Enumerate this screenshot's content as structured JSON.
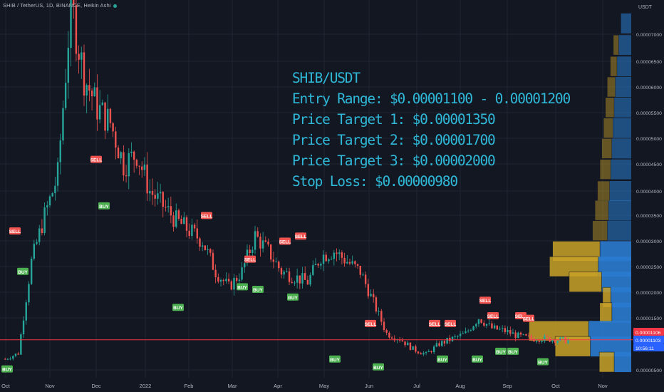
{
  "header": {
    "title": "SHIB / TetherUS, 1D, BINANCE, Heikin Ashi"
  },
  "annotation": {
    "lines": [
      "SHIB/USDT",
      "Entry Range: $0.00001100 - 0.00001200",
      "Price Target 1: $0.00001350",
      "Price Target 2: $0.00001700",
      "Price Target 3: $0.00002000",
      "Stop Loss: $0.00000980"
    ]
  },
  "colors": {
    "background": "#131722",
    "up": "#26a69a",
    "down": "#ef5350",
    "annotation": "#2fb8d8",
    "horizontal_line": "#f23645",
    "volume_profile_up": "#2a7bd0",
    "volume_profile_down": "#c9a227",
    "buy_label": "#4caf50",
    "sell_label": "#f05350"
  },
  "chart_data": {
    "type": "candlestick",
    "series_style": "Heikin Ashi",
    "currency_label": "USDT",
    "x_ticks": [
      "Oct",
      "Nov",
      "Dec",
      "2022",
      "Feb",
      "Mar",
      "Apr",
      "May",
      "Jun",
      "Jul",
      "Aug",
      "Sep",
      "Oct",
      "Nov"
    ],
    "y_ticks": [
      "0.00007000",
      "0.00006500",
      "0.00006000",
      "0.00005500",
      "0.00005000",
      "0.00004500",
      "0.00004000",
      "0.00003500",
      "0.00003000",
      "0.00002500",
      "0.00002000",
      "0.00001500",
      "0.00000500"
    ],
    "ylim": [
      3.9e-06,
      7.9e-06
    ],
    "price_path": [
      [
        "Oct",
        7.1e-06
      ],
      [
        "Oct",
        8.2e-06
      ],
      [
        "Oct",
        2.6e-05
      ],
      [
        "Oct",
        3.5e-05
      ],
      [
        "Oct",
        4.3e-05
      ],
      [
        "Nov",
        7.6e-05
      ],
      [
        "Nov",
        6.2e-05
      ],
      [
        "Nov",
        5.6e-05
      ],
      [
        "Nov",
        5.3e-05
      ],
      [
        "Nov",
        4.5e-05
      ],
      [
        "Dec",
        4.7e-05
      ],
      [
        "Dec",
        4e-05
      ],
      [
        "Dec",
        3.7e-05
      ],
      [
        "Dec",
        3.4e-05
      ],
      [
        "Dec",
        3.2e-05
      ],
      [
        "2022",
        3e-05
      ],
      [
        "2022",
        2.4e-05
      ],
      [
        "2022",
        2.1e-05
      ],
      [
        "Feb",
        2.4e-05
      ],
      [
        "Feb",
        3.1e-05
      ],
      [
        "Feb",
        2.8e-05
      ],
      [
        "Mar",
        2.4e-05
      ],
      [
        "Mar",
        2.3e-05
      ],
      [
        "Mar",
        2.2e-05
      ],
      [
        "Apr",
        2.7e-05
      ],
      [
        "Apr",
        2.8e-05
      ],
      [
        "Apr",
        2.6e-05
      ],
      [
        "May",
        2.4e-05
      ],
      [
        "May",
        1.8e-05
      ],
      [
        "May",
        1.2e-05
      ],
      [
        "Jun",
        1.1e-05
      ],
      [
        "Jun",
        9e-06
      ],
      [
        "Jun",
        8e-06
      ],
      [
        "Jul",
        1e-05
      ],
      [
        "Jul",
        1.1e-05
      ],
      [
        "Aug",
        1.2e-05
      ],
      [
        "Aug",
        1.5e-05
      ],
      [
        "Aug",
        1.3e-05
      ],
      [
        "Sep",
        1.25e-05
      ],
      [
        "Sep",
        1.15e-05
      ],
      [
        "Sep",
        1.1e-05
      ],
      [
        "Oct",
        1.1e-05
      ],
      [
        "Oct",
        1.08e-05
      ],
      [
        "Oct",
        1.06e-05
      ]
    ],
    "signals": [
      {
        "type": "BUY",
        "date": "Oct",
        "price": 7.1e-06,
        "label": "BUY"
      },
      {
        "type": "SELL",
        "date": "Oct",
        "price": 3e-05,
        "label": "SELL"
      },
      {
        "type": "BUY",
        "date": "Oct",
        "price": 2.6e-05,
        "label": "BUY"
      },
      {
        "type": "SELL",
        "date": "Nov",
        "price": 7.6e-05,
        "label": "SELL"
      },
      {
        "type": "SELL",
        "date": "Dec",
        "price": 4.4e-05,
        "label": "SELL"
      },
      {
        "type": "BUY",
        "date": "Dec",
        "price": 3.9e-05,
        "label": "BUY"
      },
      {
        "type": "BUY",
        "date": "Jan",
        "price": 1.9e-05,
        "label": "BUY"
      },
      {
        "type": "SELL",
        "date": "Feb",
        "price": 3.3e-05,
        "label": "SELL"
      },
      {
        "type": "BUY",
        "date": "Mar",
        "price": 2.3e-05,
        "label": "BUY"
      },
      {
        "type": "SELL",
        "date": "Mar",
        "price": 2.45e-05,
        "label": "SELL"
      },
      {
        "type": "BUY",
        "date": "Mar",
        "price": 2.25e-05,
        "label": "BUY"
      },
      {
        "type": "SELL",
        "date": "Apr",
        "price": 2.8e-05,
        "label": "SELL"
      },
      {
        "type": "BUY",
        "date": "Apr",
        "price": 2.1e-05,
        "label": "BUY"
      },
      {
        "type": "SELL",
        "date": "Apr",
        "price": 2.9e-05,
        "label": "SELL"
      },
      {
        "type": "BUY",
        "date": "May",
        "price": 9e-06,
        "label": "BUY"
      },
      {
        "type": "SELL",
        "date": "Jun",
        "price": 1.2e-05,
        "label": "SELL"
      },
      {
        "type": "BUY",
        "date": "Jun",
        "price": 7.5e-06,
        "label": "BUY"
      },
      {
        "type": "SELL",
        "date": "Jul",
        "price": 1.2e-05,
        "label": "SELL"
      },
      {
        "type": "BUY",
        "date": "Jul",
        "price": 9e-06,
        "label": "BUY"
      },
      {
        "type": "SELL",
        "date": "Jul",
        "price": 1.2e-05,
        "label": "SELL"
      },
      {
        "type": "BUY",
        "date": "Aug",
        "price": 9e-06,
        "label": "BUY"
      },
      {
        "type": "SELL",
        "date": "Aug",
        "price": 1.65e-05,
        "label": "SELL"
      },
      {
        "type": "SELL",
        "date": "Aug",
        "price": 1.35e-05,
        "label": "SELL"
      },
      {
        "type": "BUY",
        "date": "Aug",
        "price": 1.05e-05,
        "label": "BUY"
      },
      {
        "type": "BUY",
        "date": "Sep",
        "price": 1.05e-05,
        "label": "BUY"
      },
      {
        "type": "SELL",
        "date": "Sep",
        "price": 1.35e-05,
        "label": "SELL"
      },
      {
        "type": "SELL",
        "date": "Sep",
        "price": 1.3e-05,
        "label": "SELL"
      },
      {
        "type": "BUY",
        "date": "Sep",
        "price": 8.5e-06,
        "label": "BUY"
      }
    ],
    "price_line": 1.106e-05,
    "price_labels": [
      {
        "text": "0.00001106",
        "color": "#f23645"
      },
      {
        "text": "0.00001103",
        "color": "#2962ff"
      },
      {
        "text": "10:56:11",
        "color": "#2962ff"
      }
    ],
    "volume_profile": [
      {
        "price": 7.2e-05,
        "up": 0.18,
        "down": 0.0
      },
      {
        "price": 6.8e-05,
        "up": 0.22,
        "down": 0.08
      },
      {
        "price": 6.4e-05,
        "up": 0.25,
        "down": 0.1
      },
      {
        "price": 6e-05,
        "up": 0.28,
        "down": 0.12
      },
      {
        "price": 5.6e-05,
        "up": 0.3,
        "down": 0.13
      },
      {
        "price": 5.2e-05,
        "up": 0.32,
        "down": 0.14
      },
      {
        "price": 4.8e-05,
        "up": 0.34,
        "down": 0.15
      },
      {
        "price": 4.4e-05,
        "up": 0.36,
        "down": 0.16
      },
      {
        "price": 4e-05,
        "up": 0.38,
        "down": 0.18
      },
      {
        "price": 3.6e-05,
        "up": 0.4,
        "down": 0.2
      },
      {
        "price": 3.2e-05,
        "up": 0.42,
        "down": 0.22
      },
      {
        "price": 2.8e-05,
        "up": 0.55,
        "down": 0.7
      },
      {
        "price": 2.5e-05,
        "up": 0.58,
        "down": 0.72
      },
      {
        "price": 2.2e-05,
        "up": 0.52,
        "down": 0.48
      },
      {
        "price": 1.9e-05,
        "up": 0.36,
        "down": 0.12
      },
      {
        "price": 1.6e-05,
        "up": 0.34,
        "down": 0.18
      },
      {
        "price": 1.25e-05,
        "up": 0.75,
        "down": 0.88
      },
      {
        "price": 9.5e-06,
        "up": 0.72,
        "down": 0.52
      },
      {
        "price": 6.5e-06,
        "up": 0.3,
        "down": 0.22
      }
    ],
    "grid": true
  }
}
